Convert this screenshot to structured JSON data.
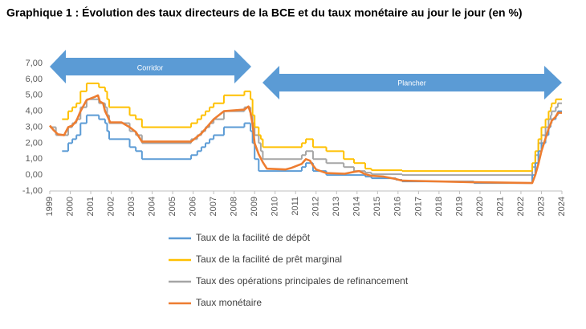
{
  "chart_data": {
    "type": "step-line",
    "title": "Graphique 1 : Évolution des taux directeurs de la BCE et du taux monétaire au jour le jour (en %)",
    "annotations": [
      "Corridor",
      "Plancher"
    ],
    "xlim": [
      1999,
      2024
    ],
    "xticks": [
      1999,
      2000,
      2001,
      2002,
      2003,
      2004,
      2005,
      2006,
      2007,
      2008,
      2009,
      2010,
      2011,
      2012,
      2013,
      2014,
      2015,
      2016,
      2017,
      2018,
      2019,
      2020,
      2021,
      2022,
      2023,
      2024
    ],
    "ylim": [
      -1,
      7
    ],
    "yticks": [
      {
        "value": -1,
        "label": "-1,00"
      },
      {
        "value": 0,
        "label": "0,00"
      },
      {
        "value": 1,
        "label": "1,00"
      },
      {
        "value": 2,
        "label": "2,00"
      },
      {
        "value": 3,
        "label": "3,00"
      },
      {
        "value": 4,
        "label": "4,00"
      },
      {
        "value": 5,
        "label": "5,00"
      },
      {
        "value": 6,
        "label": "6,00"
      },
      {
        "value": 7,
        "label": "7,00"
      }
    ],
    "grid": false,
    "series": [
      {
        "name": "Taux de la facilité de dépôt",
        "color": "#5b9bd5",
        "step": true,
        "x": [
          1999.6,
          1999.9,
          2000.1,
          2000.3,
          2000.5,
          2000.8,
          2001.4,
          2001.7,
          2001.8,
          2001.9,
          2002.9,
          2003.2,
          2003.5,
          2005.9,
          2006.2,
          2006.4,
          2006.6,
          2006.8,
          2007.0,
          2007.5,
          2008.5,
          2008.8,
          2008.9,
          2009.0,
          2009.2,
          2011.3,
          2011.5,
          2011.85,
          2012.5,
          2014.4,
          2014.7,
          2015.9,
          2016.2,
          2019.7,
          2022.55,
          2022.7,
          2022.85,
          2023.0,
          2023.2,
          2023.35,
          2023.45,
          2023.5,
          2023.7,
          2023.8,
          2024.0
        ],
        "values": [
          1.5,
          2.0,
          2.25,
          2.5,
          3.25,
          3.75,
          3.5,
          3.25,
          2.75,
          2.25,
          1.75,
          1.5,
          1.0,
          1.25,
          1.5,
          1.75,
          2.0,
          2.25,
          2.5,
          3.0,
          3.25,
          2.75,
          2.0,
          1.0,
          0.25,
          0.5,
          0.75,
          0.25,
          0,
          -0.1,
          -0.2,
          -0.3,
          -0.4,
          -0.5,
          0,
          0.75,
          1.5,
          2.0,
          2.5,
          3.0,
          3.25,
          3.5,
          3.75,
          4.0,
          4.0
        ]
      },
      {
        "name": "Taux de la facilité de prêt marginal",
        "color": "#ffc000",
        "step": true,
        "x": [
          1999.6,
          1999.9,
          2000.1,
          2000.3,
          2000.5,
          2000.8,
          2001.4,
          2001.7,
          2001.8,
          2001.9,
          2002.9,
          2003.2,
          2003.5,
          2005.9,
          2006.2,
          2006.4,
          2006.6,
          2006.8,
          2007.0,
          2007.5,
          2008.5,
          2008.8,
          2008.9,
          2009.0,
          2009.2,
          2009.3,
          2009.4,
          2011.3,
          2011.5,
          2011.85,
          2012.5,
          2013.35,
          2013.85,
          2014.4,
          2014.7,
          2016.2,
          2022.55,
          2022.7,
          2022.85,
          2023.0,
          2023.2,
          2023.35,
          2023.45,
          2023.5,
          2023.7,
          2024.0
        ],
        "values": [
          3.5,
          4.0,
          4.25,
          4.5,
          5.25,
          5.75,
          5.5,
          5.25,
          4.75,
          4.25,
          3.75,
          3.5,
          3.0,
          3.25,
          3.5,
          3.75,
          4.0,
          4.25,
          4.5,
          5.0,
          5.25,
          4.75,
          3.75,
          3.0,
          2.5,
          2.25,
          1.75,
          2.0,
          2.25,
          1.75,
          1.5,
          1.0,
          0.75,
          0.4,
          0.3,
          0.25,
          0.75,
          1.5,
          2.25,
          3.0,
          3.5,
          4.0,
          4.25,
          4.5,
          4.75,
          4.75
        ]
      },
      {
        "name": "Taux des opérations principales de refinancement",
        "color": "#a5a5a5",
        "step": true,
        "x": [
          1999.0,
          1999.3,
          1999.9,
          2000.1,
          2000.3,
          2000.5,
          2000.8,
          2001.4,
          2001.7,
          2001.8,
          2001.9,
          2002.9,
          2003.2,
          2003.5,
          2005.9,
          2006.2,
          2006.4,
          2006.6,
          2006.8,
          2007.0,
          2007.5,
          2008.5,
          2008.8,
          2008.9,
          2009.0,
          2009.2,
          2009.3,
          2009.4,
          2011.3,
          2011.5,
          2011.85,
          2012.5,
          2013.35,
          2013.85,
          2014.4,
          2014.7,
          2016.2,
          2022.55,
          2022.7,
          2022.85,
          2023.0,
          2023.2,
          2023.35,
          2023.45,
          2023.5,
          2023.7,
          2023.8,
          2024.0
        ],
        "values": [
          3.0,
          2.5,
          3.0,
          3.25,
          3.5,
          4.25,
          4.75,
          4.5,
          4.25,
          3.75,
          3.25,
          2.75,
          2.5,
          2.0,
          2.25,
          2.5,
          2.75,
          3.0,
          3.25,
          3.5,
          4.0,
          4.25,
          3.75,
          3.25,
          2.5,
          2.0,
          1.5,
          1.0,
          1.25,
          1.5,
          1.0,
          0.75,
          0.5,
          0.25,
          0.15,
          0.05,
          0,
          0.5,
          1.25,
          2.0,
          2.5,
          3.0,
          3.5,
          3.75,
          4.0,
          4.25,
          4.5,
          4.5
        ]
      },
      {
        "name": "Taux monétaire",
        "color": "#ed7d31",
        "step": false,
        "x": [
          1999.0,
          1999.2,
          1999.4,
          1999.7,
          1999.9,
          2000.1,
          2000.3,
          2000.5,
          2000.8,
          2001.0,
          2001.2,
          2001.35,
          2001.45,
          2001.6,
          2001.7,
          2001.85,
          2001.95,
          2002.5,
          2002.9,
          2003.2,
          2003.5,
          2005.9,
          2006.2,
          2006.4,
          2006.6,
          2006.8,
          2007.0,
          2007.5,
          2008.5,
          2008.7,
          2008.8,
          2008.9,
          2009.0,
          2009.2,
          2009.4,
          2009.6,
          2010.5,
          2010.8,
          2011.3,
          2011.5,
          2011.7,
          2011.85,
          2012.0,
          2012.5,
          2013.4,
          2013.85,
          2014.1,
          2014.4,
          2014.7,
          2015.3,
          2015.9,
          2016.2,
          2019.7,
          2022.55,
          2022.7,
          2022.85,
          2023.0,
          2023.2,
          2023.35,
          2023.45,
          2023.5,
          2023.7,
          2023.8,
          2024.0
        ],
        "values": [
          3.1,
          2.8,
          2.55,
          2.5,
          3.0,
          3.1,
          3.4,
          4.0,
          4.7,
          4.8,
          4.9,
          5.0,
          4.6,
          4.5,
          4.0,
          3.6,
          3.3,
          3.3,
          3.0,
          2.7,
          2.1,
          2.1,
          2.4,
          2.6,
          2.9,
          3.2,
          3.5,
          4.0,
          4.1,
          4.3,
          3.9,
          3.2,
          2.0,
          1.3,
          0.8,
          0.4,
          0.35,
          0.45,
          0.7,
          1.0,
          0.9,
          0.6,
          0.35,
          0.12,
          0.08,
          0.2,
          0.25,
          0.05,
          -0.05,
          -0.1,
          -0.25,
          -0.35,
          -0.45,
          -0.5,
          0.0,
          0.7,
          1.5,
          2.3,
          2.9,
          3.2,
          3.4,
          3.65,
          3.9,
          3.9
        ]
      }
    ]
  }
}
